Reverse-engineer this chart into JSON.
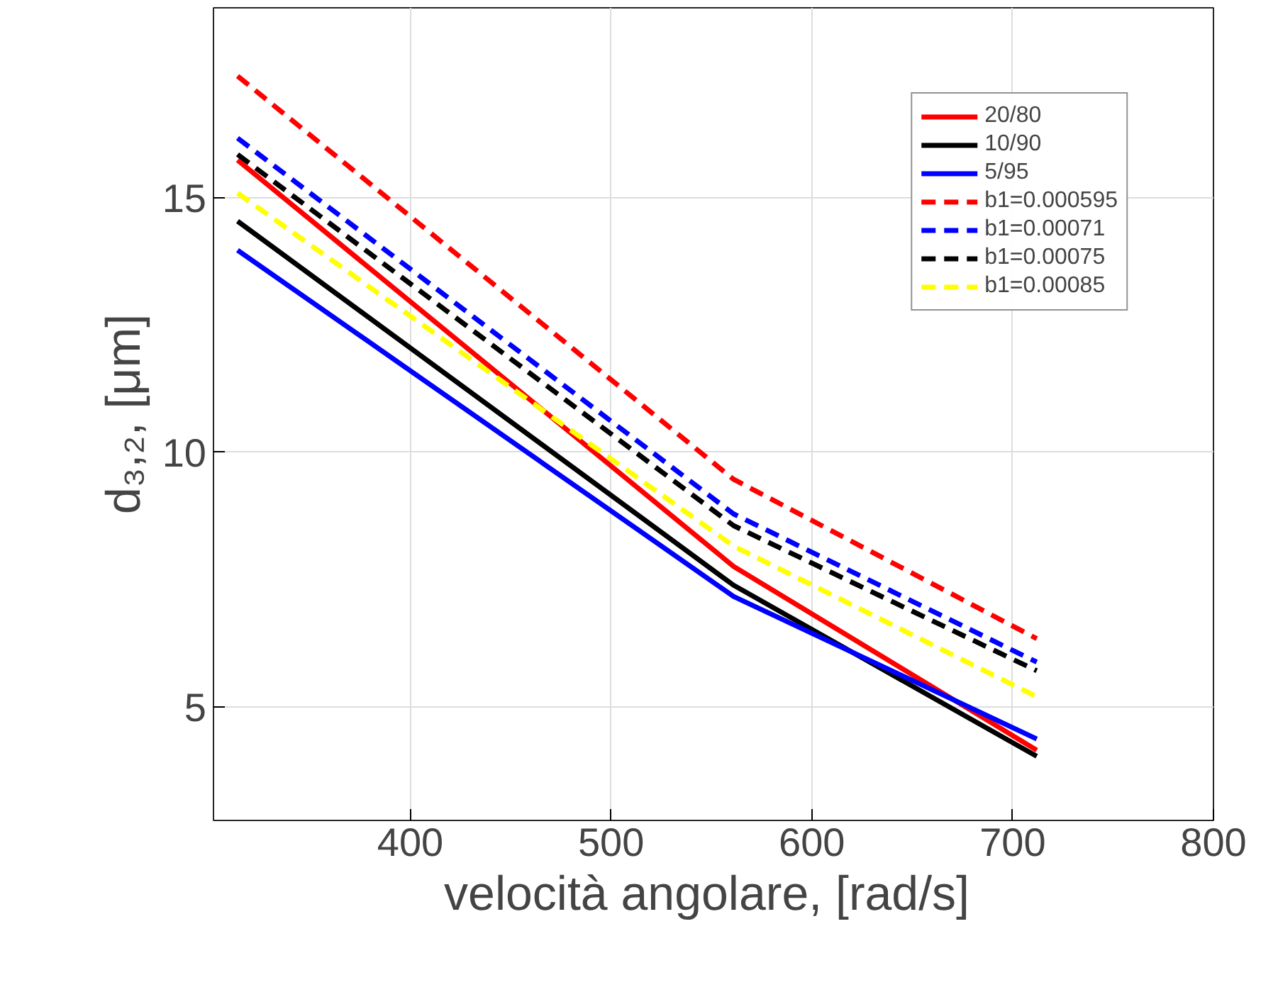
{
  "chart_data": {
    "type": "line",
    "xlabel": "velocità  angolare, [rad/s]",
    "ylabel": "d₃,₂, [μm]",
    "x": [
      314,
      561,
      712
    ],
    "xlim": [
      302,
      800
    ],
    "ylim": [
      2.77,
      18.73
    ],
    "xticks": [
      400,
      500,
      600,
      700,
      800
    ],
    "yticks": [
      5,
      10,
      15
    ],
    "grid": true,
    "legend": "top right",
    "series": [
      {
        "name": "20/80",
        "color": "#ff0000",
        "line_style": "solid",
        "values": [
          15.74,
          7.76,
          4.15
        ]
      },
      {
        "name": "10/90",
        "color": "#000000",
        "line_style": "solid",
        "values": [
          14.54,
          7.39,
          4.03
        ]
      },
      {
        "name": "5/95",
        "color": "#0000ff",
        "line_style": "solid",
        "values": [
          13.97,
          7.17,
          4.37
        ]
      },
      {
        "name": "b1=0.000595",
        "color": "#ff0000",
        "line_style": "dashed",
        "values": [
          17.39,
          9.47,
          6.34
        ]
      },
      {
        "name": "b1=0.00071",
        "color": "#0000ff",
        "line_style": "dashed",
        "values": [
          16.17,
          8.79,
          5.88
        ]
      },
      {
        "name": "b1=0.00075",
        "color": "#000000",
        "line_style": "dashed",
        "values": [
          15.85,
          8.56,
          5.71
        ]
      },
      {
        "name": "b1=0.00085",
        "color": "#ffff00",
        "line_style": "dashed",
        "values": [
          15.09,
          8.16,
          5.2
        ]
      }
    ]
  }
}
